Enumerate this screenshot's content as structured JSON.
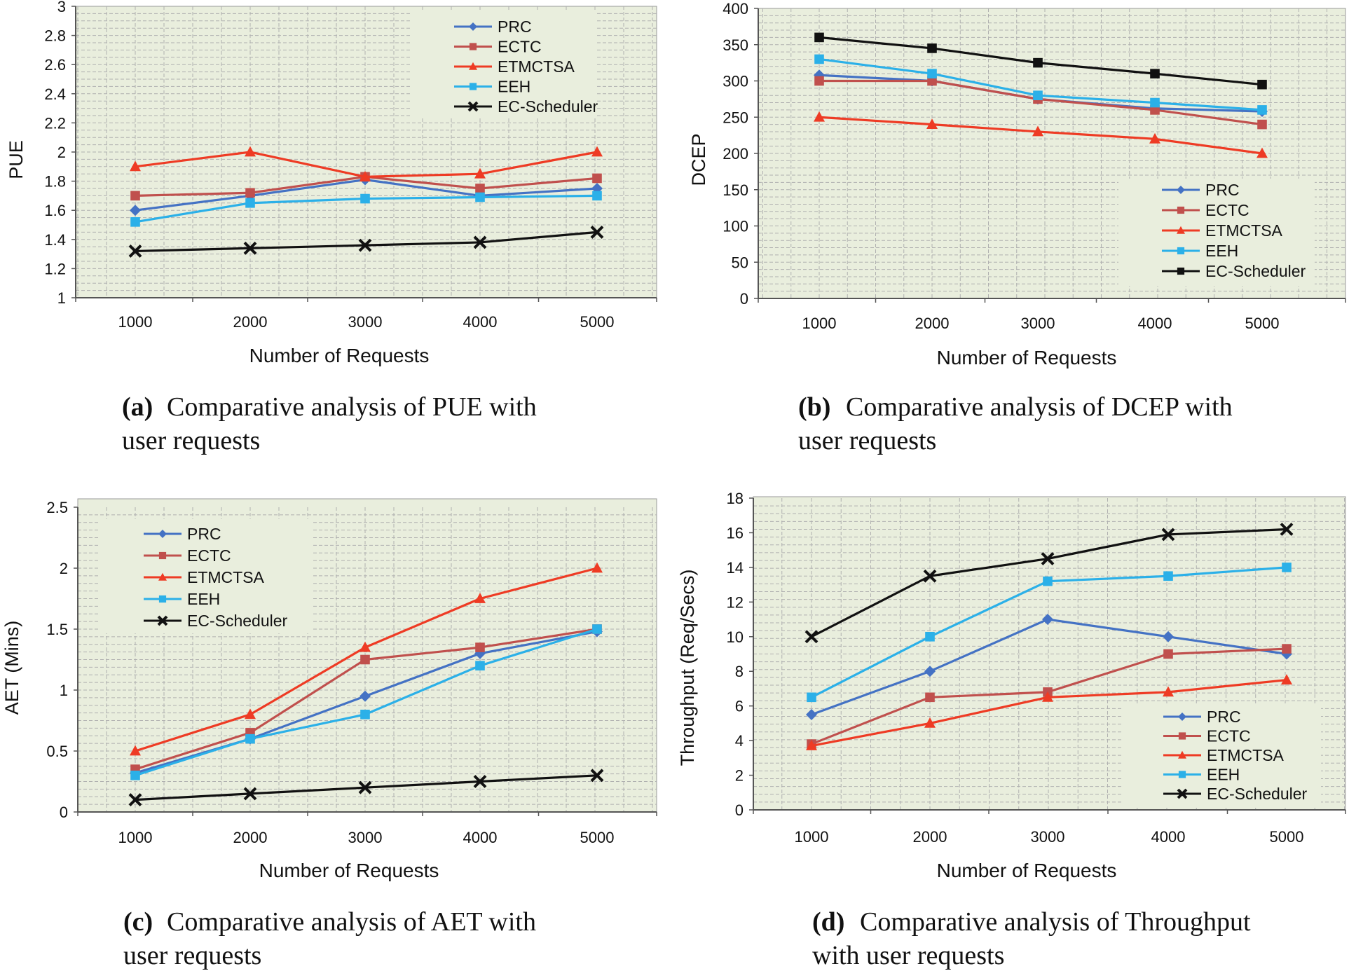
{
  "colors": {
    "PRC": "#4472C4",
    "ECTC": "#C0504D",
    "ETMCTSA": "#EE3B24",
    "EEH": "#2BB0E8",
    "EC-Scheduler": "#111111",
    "plot_bg": "#E9EEDD",
    "grid": "#B0B0B0"
  },
  "chart_data": [
    {
      "id": "a",
      "type": "line",
      "title": "",
      "xlabel": "Number of Requests",
      "ylabel": "PUE",
      "categories": [
        "1000",
        "2000",
        "3000",
        "4000",
        "5000"
      ],
      "ylim": [
        1,
        3
      ],
      "yticks": [
        "1",
        "1.2",
        "1.4",
        "1.6",
        "1.8",
        "2",
        "2.2",
        "2.4",
        "2.6",
        "2.8",
        "3"
      ],
      "legend_position": "top-right",
      "grid": true,
      "caption_label": "(a)",
      "caption_text": "Comparative analysis of PUE with user requests",
      "series": [
        {
          "name": "PRC",
          "marker": "diamond",
          "values": [
            1.6,
            1.7,
            1.81,
            1.7,
            1.75
          ]
        },
        {
          "name": "ECTC",
          "marker": "square",
          "values": [
            1.7,
            1.72,
            1.83,
            1.75,
            1.82
          ]
        },
        {
          "name": "ETMCTSA",
          "marker": "triangle",
          "values": [
            1.9,
            2.0,
            1.83,
            1.85,
            2.0
          ]
        },
        {
          "name": "EEH",
          "marker": "square",
          "values": [
            1.52,
            1.65,
            1.68,
            1.69,
            1.7
          ]
        },
        {
          "name": "EC-Scheduler",
          "marker": "x",
          "values": [
            1.32,
            1.34,
            1.36,
            1.38,
            1.45
          ]
        }
      ]
    },
    {
      "id": "b",
      "type": "line",
      "title": "",
      "xlabel": "Number of Requests",
      "ylabel": "DCEP",
      "categories": [
        "1000",
        "2000",
        "3000",
        "4000",
        "5000"
      ],
      "ylim": [
        0,
        400
      ],
      "yticks": [
        "0",
        "50",
        "100",
        "150",
        "200",
        "250",
        "300",
        "350",
        "400"
      ],
      "legend_position": "bottom-right",
      "grid": true,
      "caption_label": "(b)",
      "caption_text": "Comparative analysis of DCEP with user requests",
      "series": [
        {
          "name": "PRC",
          "marker": "diamond",
          "values": [
            308,
            300,
            275,
            262,
            258
          ]
        },
        {
          "name": "ECTC",
          "marker": "square",
          "values": [
            300,
            300,
            275,
            260,
            240
          ]
        },
        {
          "name": "ETMCTSA",
          "marker": "triangle",
          "values": [
            250,
            240,
            230,
            220,
            200
          ]
        },
        {
          "name": "EEH",
          "marker": "square",
          "values": [
            330,
            310,
            280,
            270,
            260
          ]
        },
        {
          "name": "EC-Scheduler",
          "marker": "square",
          "values": [
            360,
            345,
            325,
            310,
            295
          ]
        }
      ]
    },
    {
      "id": "c",
      "type": "line",
      "title": "",
      "xlabel": "Number of Requests",
      "ylabel": "AET (Mins)",
      "categories": [
        "1000",
        "2000",
        "3000",
        "4000",
        "5000"
      ],
      "ylim": [
        0,
        2.5
      ],
      "yticks": [
        "0",
        "0.5",
        "1",
        "1.5",
        "2",
        "2.5"
      ],
      "legend_position": "top-left",
      "grid": true,
      "caption_label": "(c)",
      "caption_text": "Comparative analysis of AET with user requests",
      "series": [
        {
          "name": "PRC",
          "marker": "diamond",
          "values": [
            0.32,
            0.6,
            0.95,
            1.3,
            1.48
          ]
        },
        {
          "name": "ECTC",
          "marker": "square",
          "values": [
            0.35,
            0.65,
            1.25,
            1.35,
            1.5
          ]
        },
        {
          "name": "ETMCTSA",
          "marker": "triangle",
          "values": [
            0.5,
            0.8,
            1.35,
            1.75,
            2.0
          ]
        },
        {
          "name": "EEH",
          "marker": "square",
          "values": [
            0.3,
            0.6,
            0.8,
            1.2,
            1.5
          ]
        },
        {
          "name": "EC-Scheduler",
          "marker": "x",
          "values": [
            0.1,
            0.15,
            0.2,
            0.25,
            0.3
          ]
        }
      ]
    },
    {
      "id": "d",
      "type": "line",
      "title": "",
      "xlabel": "Number of Requests",
      "ylabel": "Throughput (Req/Secs)",
      "categories": [
        "1000",
        "2000",
        "3000",
        "4000",
        "5000"
      ],
      "ylim": [
        0,
        18
      ],
      "yticks": [
        "0",
        "2",
        "4",
        "6",
        "8",
        "10",
        "12",
        "14",
        "16",
        "18"
      ],
      "legend_position": "bottom-right",
      "grid": true,
      "caption_label": "(d)",
      "caption_text": "Comparative analysis of Throughput with user requests",
      "series": [
        {
          "name": "PRC",
          "marker": "diamond",
          "values": [
            5.5,
            8.0,
            11.0,
            10.0,
            9.0
          ]
        },
        {
          "name": "ECTC",
          "marker": "square",
          "values": [
            3.8,
            6.5,
            6.8,
            9.0,
            9.3
          ]
        },
        {
          "name": "ETMCTSA",
          "marker": "triangle",
          "values": [
            3.7,
            5.0,
            6.5,
            6.8,
            7.5
          ]
        },
        {
          "name": "EEH",
          "marker": "square",
          "values": [
            6.5,
            10.0,
            13.2,
            13.5,
            14.0
          ]
        },
        {
          "name": "EC-Scheduler",
          "marker": "x",
          "values": [
            10.0,
            13.5,
            14.5,
            15.9,
            16.2
          ]
        }
      ]
    }
  ]
}
